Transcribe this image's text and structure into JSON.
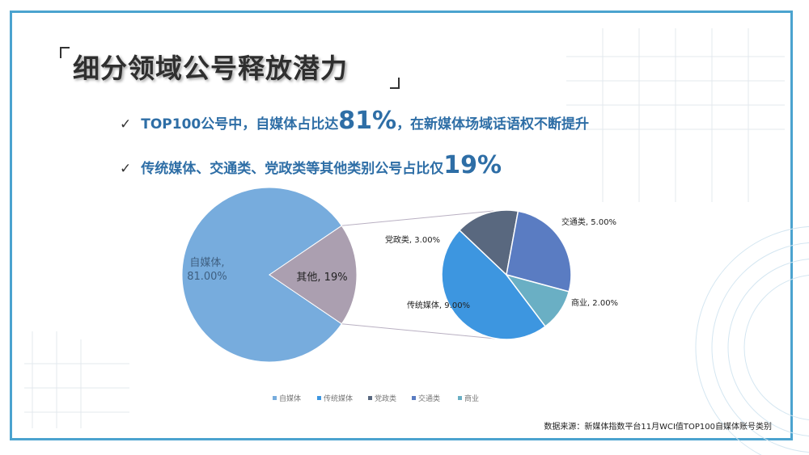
{
  "title": "细分领域公号释放潜力",
  "bullets": {
    "b1_pre": "TOP100公号中，自媒体占比达",
    "b1_big": "81%",
    "b1_post": "，在新媒体场域话语权不断提升",
    "b2_pre": "传统媒体、交通类、党政类等其他类别公号占比仅",
    "b2_big": "19%"
  },
  "check_icon": "✓",
  "source": "数据来源：新媒体指数平台11月WCI值TOP100自媒体账号类别",
  "colors": {
    "frame": "#4ba3cf",
    "bullet_text": "#2e6ea6",
    "self_media": "#77acdd",
    "other": "#ab9fb0",
    "traditional": "#3d96e0",
    "party": "#59687f",
    "transport": "#5a7cc2",
    "business": "#6aafc4"
  },
  "chart_data": [
    {
      "type": "pie",
      "title": "",
      "slices": [
        {
          "label": "自媒体",
          "value": 81.0,
          "display": "自媒体,\n81.00%",
          "color": "#77acdd"
        },
        {
          "label": "其他",
          "value": 19,
          "display": "其他, 19%",
          "color": "#ab9fb0"
        }
      ]
    },
    {
      "type": "pie",
      "title": "",
      "slices": [
        {
          "label": "传统媒体",
          "value": 9.0,
          "display": "传统媒体, 9.00%",
          "color": "#3d96e0"
        },
        {
          "label": "党政类",
          "value": 3.0,
          "display": "党政类, 3.00%",
          "color": "#59687f"
        },
        {
          "label": "交通类",
          "value": 5.0,
          "display": "交通类, 5.00%",
          "color": "#5a7cc2"
        },
        {
          "label": "商业",
          "value": 2.0,
          "display": "商业, 2.00%",
          "color": "#6aafc4"
        }
      ]
    }
  ],
  "legend": [
    {
      "label": "自媒体",
      "color": "#77acdd"
    },
    {
      "label": "传统媒体",
      "color": "#3d96e0"
    },
    {
      "label": "党政类",
      "color": "#59687f"
    },
    {
      "label": "交通类",
      "color": "#5a7cc2"
    },
    {
      "label": "商业",
      "color": "#6aafc4"
    }
  ]
}
